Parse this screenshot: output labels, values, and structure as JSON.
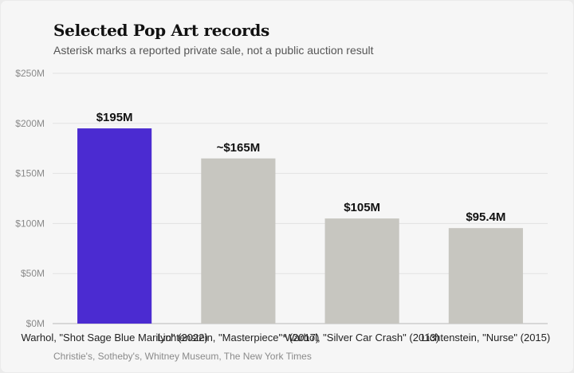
{
  "chart_data": {
    "type": "bar",
    "title": "Selected Pop Art records",
    "subtitle": "Asterisk marks a reported private sale, not a public auction result",
    "source": "Christie's, Sotheby's, Whitney Museum, The New York Times",
    "categories": [
      "Warhol, \"Shot Sage Blue Marilyn\" (2022)",
      "Lichtenstein, \"Masterpiece\"* (2017)",
      "Warhol, \"Silver Car Crash\" (2013)",
      "Lichtenstein, \"Nurse\" (2015)"
    ],
    "values": [
      195,
      165,
      105,
      95.4
    ],
    "data_labels": [
      "$195M",
      "~$165M",
      "$105M",
      "$95.4M"
    ],
    "bar_colors": [
      "#4b2bd1",
      "#c7c6c0",
      "#c7c6c0",
      "#c7c6c0"
    ],
    "ylim": [
      0,
      250
    ],
    "yticks": [
      0,
      50,
      100,
      150,
      200,
      250
    ],
    "ytick_labels": [
      "$0M",
      "$50M",
      "$100M",
      "$150M",
      "$200M",
      "$250M"
    ],
    "xlabel": "",
    "ylabel": "",
    "grid": true,
    "grid_color": "#e2e2e2",
    "legend": "none"
  }
}
